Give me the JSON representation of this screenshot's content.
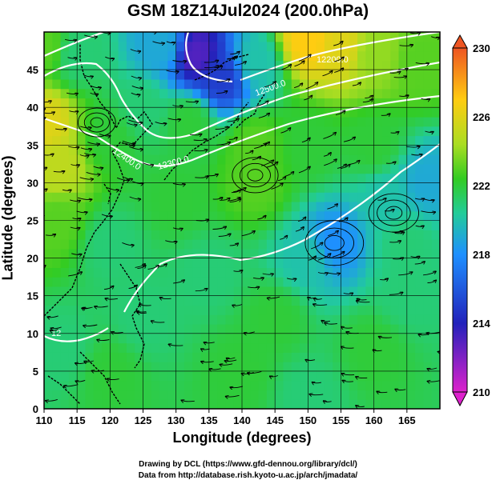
{
  "title": "GSM 18Z14Jul2024 (200.0hPa)",
  "xlabel": "Longitude (degrees)",
  "ylabel": "Latitude  (degrees)",
  "credits": {
    "line1": "Drawing by DCL (https://www.gfd-dennou.org/library/dcl/)",
    "line2": "Data from http://database.rish.kyoto-u.ac.jp/arch/jmadata/"
  },
  "chart_data": {
    "type": "heatmap",
    "variable": "temperature field with wind streamlines and geopotential height contours",
    "x_ticks": [
      110,
      115,
      120,
      125,
      130,
      135,
      140,
      145,
      150,
      155,
      160,
      165
    ],
    "y_ticks": [
      0,
      5,
      10,
      15,
      20,
      25,
      30,
      35,
      40,
      45
    ],
    "xlim": [
      110,
      170
    ],
    "ylim": [
      0,
      50
    ],
    "grid": true,
    "colorbar": {
      "ticks": [
        210,
        214,
        218,
        222,
        226,
        230
      ],
      "range": [
        210,
        230
      ],
      "colors": [
        "#dd22cc",
        "#2222bb",
        "#1e90ff",
        "#22cc99",
        "#33cc22",
        "#aadd22",
        "#ffcc11",
        "#ee5522"
      ]
    },
    "contour_labels": [
      "12000",
      "12200.0",
      "12400.0",
      "12300.0",
      "12500.0",
      "12"
    ],
    "field_samples": [
      {
        "lon": 110,
        "lat": 48,
        "value": 223
      },
      {
        "lon": 115,
        "lat": 47,
        "value": 221
      },
      {
        "lon": 128,
        "lat": 48,
        "value": 219
      },
      {
        "lon": 133,
        "lat": 47,
        "value": 213
      },
      {
        "lon": 137,
        "lat": 44,
        "value": 215
      },
      {
        "lon": 142,
        "lat": 46,
        "value": 220
      },
      {
        "lon": 150,
        "lat": 49,
        "value": 227
      },
      {
        "lon": 155,
        "lat": 48,
        "value": 226
      },
      {
        "lon": 160,
        "lat": 47,
        "value": 224
      },
      {
        "lon": 167,
        "lat": 46,
        "value": 223
      },
      {
        "lon": 110,
        "lat": 38,
        "value": 226
      },
      {
        "lon": 112,
        "lat": 32,
        "value": 225
      },
      {
        "lon": 112,
        "lat": 25,
        "value": 223
      },
      {
        "lon": 120,
        "lat": 36,
        "value": 222
      },
      {
        "lon": 125,
        "lat": 40,
        "value": 221
      },
      {
        "lon": 132,
        "lat": 38,
        "value": 222
      },
      {
        "lon": 142,
        "lat": 35,
        "value": 223
      },
      {
        "lon": 142,
        "lat": 30,
        "value": 223
      },
      {
        "lon": 150,
        "lat": 35,
        "value": 222
      },
      {
        "lon": 160,
        "lat": 35,
        "value": 222
      },
      {
        "lon": 168,
        "lat": 30,
        "value": 219
      },
      {
        "lon": 162,
        "lat": 28,
        "value": 220
      },
      {
        "lon": 154,
        "lat": 22,
        "value": 218
      },
      {
        "lon": 150,
        "lat": 20,
        "value": 220
      },
      {
        "lon": 165,
        "lat": 22,
        "value": 221
      },
      {
        "lon": 130,
        "lat": 28,
        "value": 222
      },
      {
        "lon": 120,
        "lat": 22,
        "value": 221
      },
      {
        "lon": 135,
        "lat": 18,
        "value": 221
      },
      {
        "lon": 145,
        "lat": 12,
        "value": 222
      },
      {
        "lon": 125,
        "lat": 12,
        "value": 221
      },
      {
        "lon": 113,
        "lat": 8,
        "value": 221
      },
      {
        "lon": 120,
        "lat": 5,
        "value": 222
      },
      {
        "lon": 140,
        "lat": 5,
        "value": 222
      },
      {
        "lon": 160,
        "lat": 8,
        "value": 222
      },
      {
        "lon": 165,
        "lat": 15,
        "value": 221
      },
      {
        "lon": 150,
        "lat": 2,
        "value": 221
      }
    ]
  }
}
